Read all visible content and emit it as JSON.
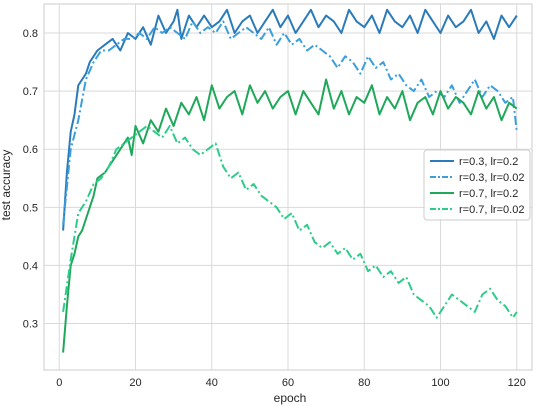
{
  "chart_data": {
    "type": "line",
    "xlabel": "epoch",
    "ylabel": "test accuracy",
    "xlim": [
      -4,
      124
    ],
    "ylim": [
      0.22,
      0.85
    ],
    "xticks": [
      0,
      20,
      40,
      60,
      80,
      100,
      120
    ],
    "xtick_labels": [
      "0",
      "20",
      "40",
      "60",
      "80",
      "100",
      "120"
    ],
    "yticks": [
      0.3,
      0.4,
      0.5,
      0.6,
      0.7,
      0.8
    ],
    "ytick_labels": [
      "0.3",
      "0.4",
      "0.5",
      "0.6",
      "0.7",
      "0.8"
    ],
    "grid": true,
    "legend_position": "center-right",
    "series": [
      {
        "name": "r=0.3, lr=0.2",
        "color": "#2b7bba",
        "dash": "solid",
        "x": [
          1,
          2,
          3,
          4,
          5,
          6,
          7,
          8,
          9,
          10,
          12,
          14,
          16,
          18,
          20,
          22,
          24,
          26,
          28,
          30,
          31,
          32,
          34,
          36,
          38,
          40,
          42,
          44,
          46,
          48,
          50,
          52,
          54,
          56,
          58,
          60,
          62,
          64,
          66,
          68,
          70,
          72,
          74,
          76,
          78,
          80,
          82,
          84,
          86,
          88,
          90,
          92,
          94,
          96,
          98,
          100,
          102,
          104,
          106,
          108,
          110,
          112,
          114,
          116,
          118,
          120
        ],
        "values": [
          0.46,
          0.56,
          0.63,
          0.66,
          0.71,
          0.72,
          0.73,
          0.75,
          0.76,
          0.77,
          0.78,
          0.79,
          0.77,
          0.8,
          0.79,
          0.81,
          0.78,
          0.83,
          0.8,
          0.82,
          0.84,
          0.79,
          0.83,
          0.81,
          0.83,
          0.81,
          0.82,
          0.84,
          0.8,
          0.82,
          0.83,
          0.8,
          0.82,
          0.84,
          0.81,
          0.83,
          0.8,
          0.82,
          0.84,
          0.81,
          0.83,
          0.82,
          0.8,
          0.84,
          0.82,
          0.81,
          0.83,
          0.8,
          0.84,
          0.82,
          0.81,
          0.83,
          0.8,
          0.84,
          0.82,
          0.8,
          0.83,
          0.81,
          0.82,
          0.84,
          0.8,
          0.82,
          0.79,
          0.83,
          0.81,
          0.83
        ]
      },
      {
        "name": "r=0.3, lr=0.02",
        "color": "#3a9fdc",
        "dash": "dashdot",
        "x": [
          1,
          3,
          5,
          7,
          9,
          11,
          13,
          15,
          17,
          19,
          21,
          23,
          25,
          27,
          29,
          31,
          33,
          35,
          37,
          39,
          41,
          43,
          45,
          47,
          49,
          51,
          53,
          55,
          57,
          59,
          61,
          63,
          65,
          67,
          69,
          71,
          73,
          75,
          77,
          79,
          81,
          83,
          85,
          87,
          89,
          91,
          93,
          95,
          97,
          99,
          101,
          103,
          105,
          107,
          109,
          111,
          113,
          115,
          117,
          119,
          120
        ],
        "values": [
          0.47,
          0.6,
          0.65,
          0.72,
          0.75,
          0.77,
          0.77,
          0.78,
          0.79,
          0.79,
          0.8,
          0.79,
          0.81,
          0.8,
          0.81,
          0.8,
          0.79,
          0.82,
          0.8,
          0.81,
          0.8,
          0.82,
          0.79,
          0.8,
          0.81,
          0.8,
          0.79,
          0.81,
          0.78,
          0.8,
          0.78,
          0.79,
          0.77,
          0.78,
          0.77,
          0.76,
          0.74,
          0.76,
          0.75,
          0.73,
          0.76,
          0.74,
          0.75,
          0.72,
          0.73,
          0.71,
          0.7,
          0.72,
          0.69,
          0.7,
          0.69,
          0.71,
          0.68,
          0.7,
          0.72,
          0.69,
          0.71,
          0.7,
          0.68,
          0.69,
          0.63
        ]
      },
      {
        "name": "r=0.7, lr=0.2",
        "color": "#1fa85a",
        "dash": "solid",
        "x": [
          1,
          2,
          3,
          4,
          5,
          6,
          7,
          8,
          9,
          10,
          12,
          14,
          16,
          18,
          19,
          20,
          22,
          24,
          26,
          28,
          30,
          32,
          34,
          36,
          38,
          40,
          42,
          44,
          46,
          48,
          50,
          52,
          54,
          56,
          58,
          60,
          62,
          64,
          66,
          68,
          70,
          72,
          74,
          76,
          78,
          80,
          82,
          84,
          86,
          88,
          90,
          92,
          94,
          96,
          98,
          100,
          102,
          104,
          106,
          108,
          110,
          112,
          114,
          116,
          118,
          120
        ],
        "values": [
          0.25,
          0.33,
          0.4,
          0.42,
          0.45,
          0.46,
          0.48,
          0.5,
          0.52,
          0.55,
          0.56,
          0.58,
          0.6,
          0.62,
          0.59,
          0.64,
          0.61,
          0.65,
          0.63,
          0.67,
          0.64,
          0.68,
          0.66,
          0.69,
          0.65,
          0.71,
          0.67,
          0.69,
          0.7,
          0.66,
          0.71,
          0.68,
          0.7,
          0.67,
          0.69,
          0.7,
          0.66,
          0.7,
          0.68,
          0.66,
          0.72,
          0.67,
          0.7,
          0.66,
          0.69,
          0.68,
          0.71,
          0.66,
          0.69,
          0.67,
          0.7,
          0.65,
          0.68,
          0.69,
          0.66,
          0.7,
          0.67,
          0.69,
          0.68,
          0.66,
          0.7,
          0.67,
          0.69,
          0.65,
          0.68,
          0.67
        ]
      },
      {
        "name": "r=0.7, lr=0.02",
        "color": "#2ecc8a",
        "dash": "dashdot",
        "x": [
          1,
          3,
          5,
          7,
          9,
          11,
          13,
          15,
          17,
          19,
          21,
          23,
          25,
          27,
          29,
          31,
          33,
          35,
          37,
          39,
          41,
          43,
          45,
          47,
          49,
          51,
          53,
          55,
          57,
          59,
          61,
          63,
          65,
          67,
          69,
          71,
          73,
          75,
          77,
          79,
          81,
          83,
          85,
          87,
          89,
          91,
          93,
          95,
          97,
          99,
          101,
          103,
          105,
          107,
          109,
          111,
          113,
          115,
          117,
          119,
          120
        ],
        "values": [
          0.32,
          0.41,
          0.49,
          0.51,
          0.54,
          0.55,
          0.57,
          0.6,
          0.61,
          0.62,
          0.63,
          0.64,
          0.63,
          0.62,
          0.64,
          0.61,
          0.62,
          0.6,
          0.59,
          0.6,
          0.61,
          0.57,
          0.55,
          0.56,
          0.53,
          0.54,
          0.52,
          0.51,
          0.5,
          0.48,
          0.49,
          0.46,
          0.47,
          0.44,
          0.43,
          0.44,
          0.42,
          0.43,
          0.41,
          0.42,
          0.39,
          0.4,
          0.38,
          0.39,
          0.37,
          0.38,
          0.35,
          0.34,
          0.33,
          0.31,
          0.33,
          0.35,
          0.34,
          0.33,
          0.32,
          0.35,
          0.36,
          0.34,
          0.33,
          0.31,
          0.32
        ]
      }
    ]
  }
}
